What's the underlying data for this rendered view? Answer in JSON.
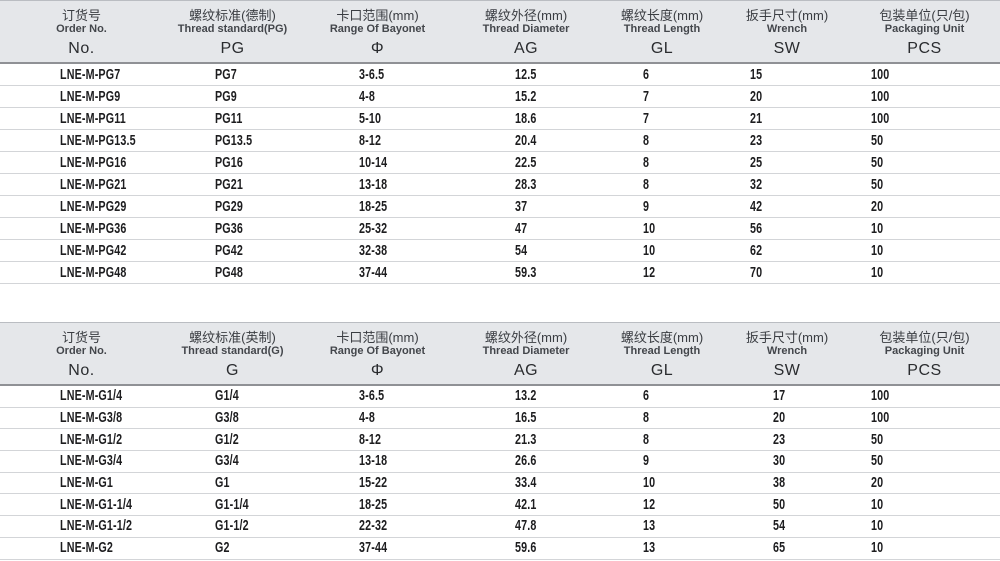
{
  "colors": {
    "header_bg": "#e5e7ea",
    "header_top_border": "#babdc2",
    "header_bottom_border": "#8f9195",
    "row_separator": "#d3d5d8",
    "data_text": "#1d1d1f",
    "header_text": "#3a3d42"
  },
  "tables": [
    {
      "id": "pg-spec-table",
      "columns": [
        {
          "cn": "订货号",
          "en": "Order No.",
          "code": "No."
        },
        {
          "cn": "螺纹标准(德制)",
          "en": "Thread standard(PG)",
          "code": "PG"
        },
        {
          "cn": "卡口范围(mm)",
          "en": "Range Of Bayonet",
          "code": "Φ"
        },
        {
          "cn": "螺纹外径(mm)",
          "en": "Thread Diameter",
          "code": "AG"
        },
        {
          "cn": "螺纹长度(mm)",
          "en": "Thread Length",
          "code": "GL"
        },
        {
          "cn": "扳手尺寸(mm)",
          "en": "Wrench",
          "code": "SW"
        },
        {
          "cn": "包装单位(只/包)",
          "en": "Packaging Unit",
          "code": "PCS"
        }
      ],
      "rows": [
        [
          "LNE-M-PG7",
          "PG7",
          "3-6.5",
          "12.5",
          "6",
          "15",
          "100"
        ],
        [
          "LNE-M-PG9",
          "PG9",
          "4-8",
          "15.2",
          "7",
          "20",
          "100"
        ],
        [
          "LNE-M-PG11",
          "PG11",
          "5-10",
          "18.6",
          "7",
          "21",
          "100"
        ],
        [
          "LNE-M-PG13.5",
          "PG13.5",
          "8-12",
          "20.4",
          "8",
          "23",
          "50"
        ],
        [
          "LNE-M-PG16",
          "PG16",
          "10-14",
          "22.5",
          "8",
          "25",
          "50"
        ],
        [
          "LNE-M-PG21",
          "PG21",
          "13-18",
          "28.3",
          "8",
          "32",
          "50"
        ],
        [
          "LNE-M-PG29",
          "PG29",
          "18-25",
          "37",
          "9",
          "42",
          "20"
        ],
        [
          "LNE-M-PG36",
          "PG36",
          "25-32",
          "47",
          "10",
          "56",
          "10"
        ],
        [
          "LNE-M-PG42",
          "PG42",
          "32-38",
          "54",
          "10",
          "62",
          "10"
        ],
        [
          "LNE-M-PG48",
          "PG48",
          "37-44",
          "59.3",
          "12",
          "70",
          "10"
        ]
      ]
    },
    {
      "id": "g-spec-table",
      "columns": [
        {
          "cn": "订货号",
          "en": "Order No.",
          "code": "No."
        },
        {
          "cn": "螺纹标准(英制)",
          "en": "Thread standard(G)",
          "code": "G"
        },
        {
          "cn": "卡口范围(mm)",
          "en": "Range Of Bayonet",
          "code": "Φ"
        },
        {
          "cn": "螺纹外径(mm)",
          "en": "Thread Diameter",
          "code": "AG"
        },
        {
          "cn": "螺纹长度(mm)",
          "en": "Thread Length",
          "code": "GL"
        },
        {
          "cn": "扳手尺寸(mm)",
          "en": "Wrench",
          "code": "SW"
        },
        {
          "cn": "包装单位(只/包)",
          "en": "Packaging Unit",
          "code": "PCS"
        }
      ],
      "rows": [
        [
          "LNE-M-G1/4",
          "G1/4",
          "3-6.5",
          "13.2",
          "6",
          "17",
          "100"
        ],
        [
          "LNE-M-G3/8",
          "G3/8",
          "4-8",
          "16.5",
          "8",
          "20",
          "100"
        ],
        [
          "LNE-M-G1/2",
          "G1/2",
          "8-12",
          "21.3",
          "8",
          "23",
          "50"
        ],
        [
          "LNE-M-G3/4",
          "G3/4",
          "13-18",
          "26.6",
          "9",
          "30",
          "50"
        ],
        [
          "LNE-M-G1",
          "G1",
          "15-22",
          "33.4",
          "10",
          "38",
          "20"
        ],
        [
          "LNE-M-G1-1/4",
          "G1-1/4",
          "18-25",
          "42.1",
          "12",
          "50",
          "10"
        ],
        [
          "LNE-M-G1-1/2",
          "G1-1/2",
          "22-32",
          "47.8",
          "13",
          "54",
          "10"
        ],
        [
          "LNE-M-G2",
          "G2",
          "37-44",
          "59.6",
          "13",
          "65",
          "10"
        ]
      ]
    }
  ]
}
